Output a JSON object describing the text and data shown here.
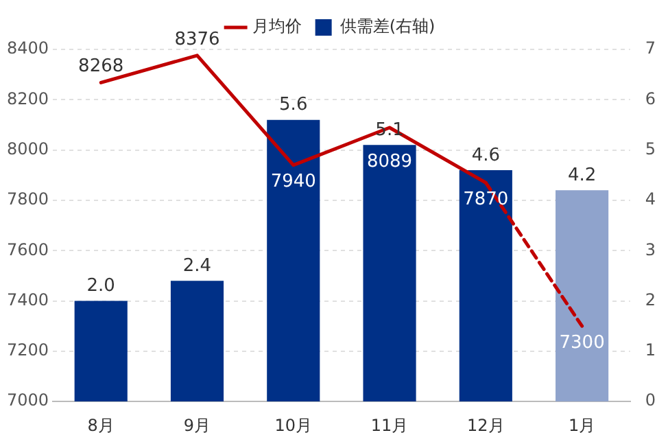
{
  "chart_data": {
    "type": "bar",
    "categories": [
      "8月",
      "9月",
      "10月",
      "11月",
      "12月",
      "1月"
    ],
    "ylim": [
      7000,
      8400
    ],
    "yticks": [
      7000,
      7200,
      7400,
      7600,
      7800,
      8000,
      8200,
      8400
    ],
    "y2lim": [
      0,
      7
    ],
    "y2ticks": [
      0,
      1,
      2,
      3,
      4,
      5,
      6,
      7
    ],
    "grid": "y",
    "legend": "top",
    "series": [
      {
        "name": "供需差(右轴)",
        "axis": "y2",
        "color": "#003087",
        "colors": [
          "#003087",
          "#003087",
          "#003087",
          "#003087",
          "#003087",
          "#8fa3cc"
        ],
        "values": [
          2.0,
          2.4,
          5.6,
          5.1,
          4.6,
          4.2
        ],
        "value_labels": [
          "2.0",
          "2.4",
          "5.6",
          "5.1",
          "4.6",
          "4.2"
        ]
      },
      {
        "name": "月均价",
        "type": "line",
        "axis": "y",
        "color": "#c00000",
        "line_style": "solid",
        "marker": "none",
        "values": [
          8268,
          8376,
          7940,
          8089,
          7870,
          null
        ],
        "value_labels": [
          "8268",
          "8376",
          "7940",
          "8089",
          "7870",
          null
        ]
      },
      {
        "type": "line",
        "axis": "y",
        "color": "#c00000",
        "line_style": "dashed",
        "marker": "none",
        "values": [
          null,
          null,
          null,
          null,
          7870,
          7300
        ],
        "value_labels": [
          null,
          null,
          null,
          null,
          null,
          "7300"
        ]
      }
    ]
  }
}
